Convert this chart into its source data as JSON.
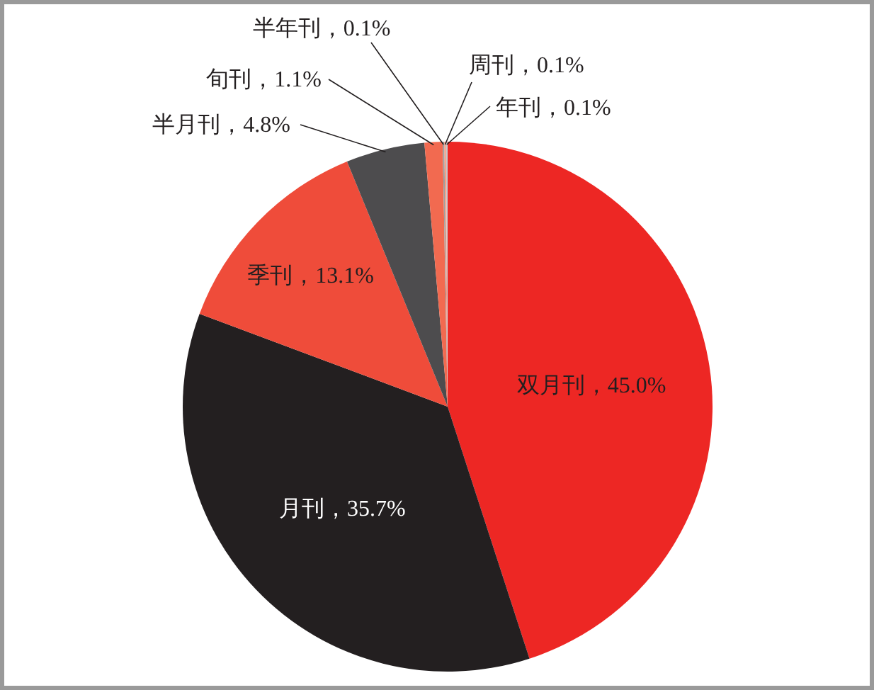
{
  "chart_data": {
    "type": "pie",
    "categories": [
      "双月刊",
      "月刊",
      "季刊",
      "半月刊",
      "旬刊",
      "半年刊",
      "周刊",
      "年刊"
    ],
    "values": [
      45.0,
      35.7,
      13.1,
      4.8,
      1.1,
      0.1,
      0.1,
      0.1
    ],
    "colors": [
      "#ed2724",
      "#231f20",
      "#ef4c3a",
      "#4d4c4e",
      "#f26a50",
      "#9e9e9e",
      "#f59a82",
      "#c8c8c8"
    ],
    "value_labels": [
      "45.0%",
      "35.7%",
      "13.1%",
      "4.8%",
      "1.1%",
      "0.1%",
      "0.1%",
      "0.1%"
    ]
  }
}
